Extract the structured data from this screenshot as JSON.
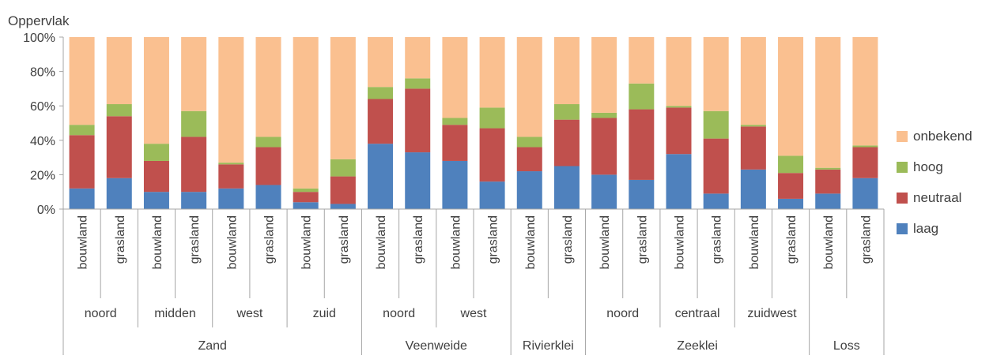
{
  "chart_data": {
    "type": "bar",
    "stacked": true,
    "percent": true,
    "ylabel": "Oppervlak",
    "ylim": [
      0,
      100
    ],
    "yticks": [
      "0%",
      "20%",
      "40%",
      "60%",
      "80%",
      "100%"
    ],
    "categories": [
      {
        "label": "bouwland",
        "region": "noord",
        "soil": "Zand"
      },
      {
        "label": "grasland",
        "region": "noord",
        "soil": "Zand"
      },
      {
        "label": "bouwland",
        "region": "midden",
        "soil": "Zand"
      },
      {
        "label": "grasland",
        "region": "midden",
        "soil": "Zand"
      },
      {
        "label": "bouwland",
        "region": "west",
        "soil": "Zand"
      },
      {
        "label": "grasland",
        "region": "west",
        "soil": "Zand"
      },
      {
        "label": "bouwland",
        "region": "zuid",
        "soil": "Zand"
      },
      {
        "label": "grasland",
        "region": "zuid",
        "soil": "Zand"
      },
      {
        "label": "bouwland",
        "region": "noord",
        "soil": "Veenweide"
      },
      {
        "label": "grasland",
        "region": "noord",
        "soil": "Veenweide"
      },
      {
        "label": "bouwland",
        "region": "west",
        "soil": "Veenweide"
      },
      {
        "label": "grasland",
        "region": "west",
        "soil": "Veenweide"
      },
      {
        "label": "bouwland",
        "region": "",
        "soil": "Rivierklei"
      },
      {
        "label": "grasland",
        "region": "",
        "soil": "Rivierklei"
      },
      {
        "label": "bouwland",
        "region": "noord",
        "soil": "Zeeklei"
      },
      {
        "label": "grasland",
        "region": "noord",
        "soil": "Zeeklei"
      },
      {
        "label": "bouwland",
        "region": "centraal",
        "soil": "Zeeklei"
      },
      {
        "label": "grasland",
        "region": "centraal",
        "soil": "Zeeklei"
      },
      {
        "label": "bouwland",
        "region": "zuidwest",
        "soil": "Zeeklei"
      },
      {
        "label": "grasland",
        "region": "zuidwest",
        "soil": "Zeeklei"
      },
      {
        "label": "bouwland",
        "region": "",
        "soil": "Loss"
      },
      {
        "label": "grasland",
        "region": "",
        "soil": "Loss"
      }
    ],
    "region_groups": [
      {
        "label": "noord",
        "count": 2
      },
      {
        "label": "midden",
        "count": 2
      },
      {
        "label": "west",
        "count": 2
      },
      {
        "label": "zuid",
        "count": 2
      },
      {
        "label": "noord",
        "count": 2
      },
      {
        "label": "west",
        "count": 2
      },
      {
        "label": "",
        "count": 2
      },
      {
        "label": "noord",
        "count": 2
      },
      {
        "label": "centraal",
        "count": 2
      },
      {
        "label": "zuidwest",
        "count": 2
      },
      {
        "label": "",
        "count": 2
      }
    ],
    "soil_groups": [
      {
        "label": "Zand",
        "count": 8
      },
      {
        "label": "Veenweide",
        "count": 4
      },
      {
        "label": "Rivierklei",
        "count": 2
      },
      {
        "label": "Zeeklei",
        "count": 6
      },
      {
        "label": "Loss",
        "count": 2
      }
    ],
    "series": [
      {
        "name": "laag",
        "color": "#4f81bd",
        "values": [
          12,
          18,
          10,
          10,
          12,
          14,
          4,
          3,
          38,
          33,
          28,
          16,
          22,
          25,
          20,
          17,
          32,
          9,
          23,
          6,
          9,
          18
        ]
      },
      {
        "name": "neutraal",
        "color": "#c0504d",
        "values": [
          31,
          36,
          18,
          32,
          14,
          22,
          6,
          16,
          26,
          37,
          21,
          31,
          14,
          27,
          33,
          41,
          27,
          32,
          25,
          15,
          14,
          18
        ]
      },
      {
        "name": "hoog",
        "color": "#9bbb59",
        "values": [
          6,
          7,
          10,
          15,
          1,
          6,
          2,
          10,
          7,
          6,
          4,
          12,
          6,
          9,
          3,
          15,
          1,
          16,
          1,
          10,
          1,
          1
        ]
      },
      {
        "name": "onbekend",
        "color": "#fac090",
        "values": [
          51,
          39,
          62,
          43,
          73,
          58,
          88,
          71,
          29,
          24,
          47,
          41,
          58,
          39,
          44,
          27,
          40,
          43,
          51,
          69,
          76,
          63
        ]
      }
    ],
    "legend_position": "right",
    "grid": false
  }
}
